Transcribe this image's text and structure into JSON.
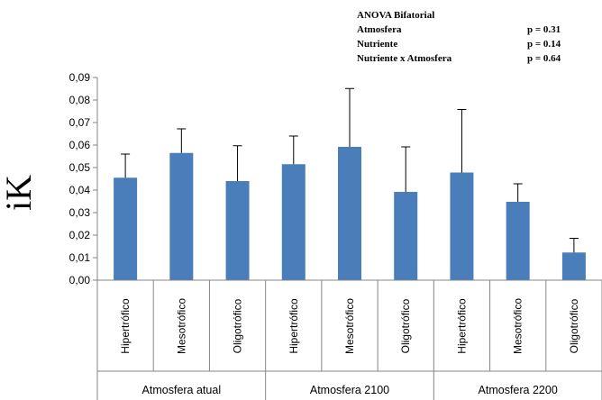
{
  "chart_data": {
    "type": "bar",
    "ylabel": "iK",
    "ylim": [
      0,
      0.09
    ],
    "yticks": [
      "0,00",
      "0,01",
      "0,02",
      "0,03",
      "0,04",
      "0,05",
      "0,06",
      "0,07",
      "0,08",
      "0,09"
    ],
    "groups": [
      "Atmosfera atual",
      "Atmosfera 2100",
      "Atmosfera 2200"
    ],
    "categories": [
      "Hipertrófico",
      "Mesotrófico",
      "Oligotrófico",
      "Hipertrófico",
      "Mesotrófico",
      "Oligotrófico",
      "Hipertrófico",
      "Mesotrófico",
      "Oligotrófico"
    ],
    "values": [
      0.0455,
      0.0565,
      0.044,
      0.0515,
      0.0592,
      0.0392,
      0.0478,
      0.0348,
      0.0123
    ],
    "error_upper": [
      0.056,
      0.0672,
      0.0597,
      0.064,
      0.0851,
      0.0592,
      0.0758,
      0.0428,
      0.0186
    ],
    "bar_color": "#4a7ebb",
    "grid": false,
    "annotation": {
      "title": "ANOVA Bifatorial",
      "rows": [
        {
          "label": "Atmosfera",
          "p": "p = 0.31"
        },
        {
          "label": "Nutriente",
          "p": "p = 0.14"
        },
        {
          "label": "Nutriente x Atmosfera",
          "p": "p = 0.64"
        }
      ]
    }
  }
}
